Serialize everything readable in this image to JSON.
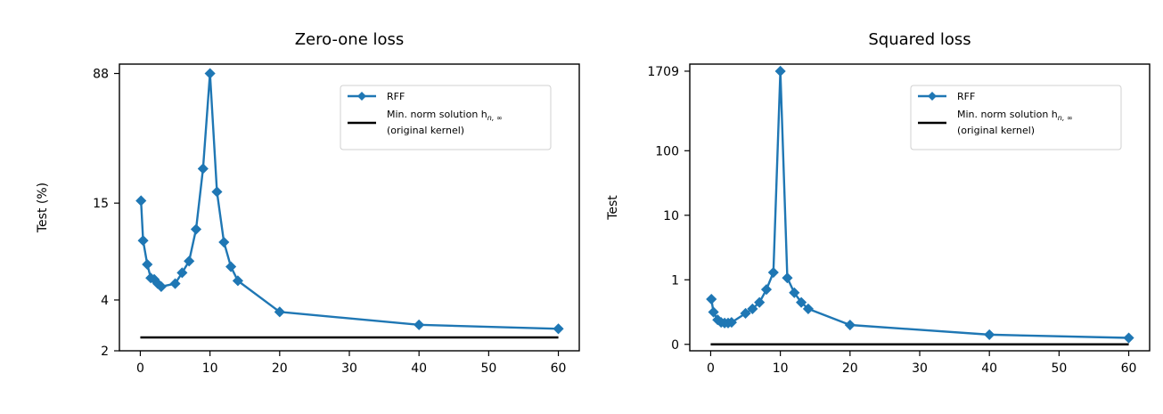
{
  "chart_data": [
    {
      "type": "line",
      "title": "Zero-one loss",
      "xlabel": "",
      "ylabel": "Test (%)",
      "xlim": [
        -3,
        63
      ],
      "ylim": [
        2,
        100
      ],
      "xticks": [
        0,
        10,
        20,
        30,
        40,
        50,
        60
      ],
      "xtick_labels": [
        "0",
        "10",
        "20",
        "30",
        "40",
        "50",
        "60"
      ],
      "yticks": [
        2,
        4,
        15,
        88
      ],
      "ytick_labels": [
        "2",
        "4",
        "15",
        "88"
      ],
      "y_scale": "log",
      "grid": false,
      "legend_position": "top-right",
      "legend": {
        "rff": "RFF",
        "minnorm_line1": "Min. norm solution h",
        "minnorm_subscript": "n, ∞",
        "minnorm_line2": "(original kernel)"
      },
      "series": [
        {
          "name": "RFF",
          "color": "#1f77b4",
          "marker": "diamond",
          "x": [
            0.1,
            0.4,
            1,
            1.5,
            2,
            2.5,
            3,
            5,
            6,
            7,
            8,
            9,
            10,
            11,
            12,
            13,
            14,
            20,
            40,
            60
          ],
          "y": [
            15.5,
            9.0,
            6.5,
            5.4,
            5.3,
            5.0,
            4.8,
            5.0,
            5.8,
            6.8,
            10.5,
            24.0,
            88.0,
            17.5,
            8.8,
            6.3,
            5.2,
            3.4,
            2.85,
            2.7
          ]
        },
        {
          "name": "Min. norm solution h n,∞ (original kernel)",
          "color": "#000000",
          "style": "solid",
          "x": [
            0,
            60
          ],
          "y": [
            2.4,
            2.4
          ]
        }
      ]
    },
    {
      "type": "line",
      "title": "Squared loss",
      "xlabel": "",
      "ylabel": "Test",
      "xlim": [
        -3,
        63
      ],
      "ylim": [
        -0.1,
        2200
      ],
      "xticks": [
        0,
        10,
        20,
        30,
        40,
        50,
        60
      ],
      "xtick_labels": [
        "0",
        "10",
        "20",
        "30",
        "40",
        "50",
        "60"
      ],
      "yticks": [
        0,
        1,
        10,
        100,
        1709
      ],
      "ytick_labels": [
        "0",
        "1",
        "10",
        "100",
        "1709"
      ],
      "y_scale": "symlog",
      "grid": false,
      "legend_position": "top-right",
      "legend": {
        "rff": "RFF",
        "minnorm_line1": "Min. norm solution h",
        "minnorm_subscript": "n, ∞",
        "minnorm_line2": "(original kernel)"
      },
      "series": [
        {
          "name": "RFF",
          "color": "#1f77b4",
          "marker": "diamond",
          "x": [
            0.1,
            0.4,
            1,
            1.5,
            2,
            2.5,
            3,
            5,
            6,
            7,
            8,
            9,
            10,
            11,
            12,
            13,
            14,
            20,
            40,
            60
          ],
          "y": [
            0.7,
            0.5,
            0.38,
            0.34,
            0.33,
            0.33,
            0.34,
            0.48,
            0.55,
            0.65,
            0.85,
            1.3,
            1709,
            1.07,
            0.8,
            0.65,
            0.55,
            0.3,
            0.15,
            0.1
          ]
        },
        {
          "name": "Min. norm solution h n,∞ (original kernel)",
          "color": "#000000",
          "style": "solid",
          "x": [
            0,
            60
          ],
          "y": [
            0.0,
            0.0
          ]
        }
      ]
    }
  ]
}
